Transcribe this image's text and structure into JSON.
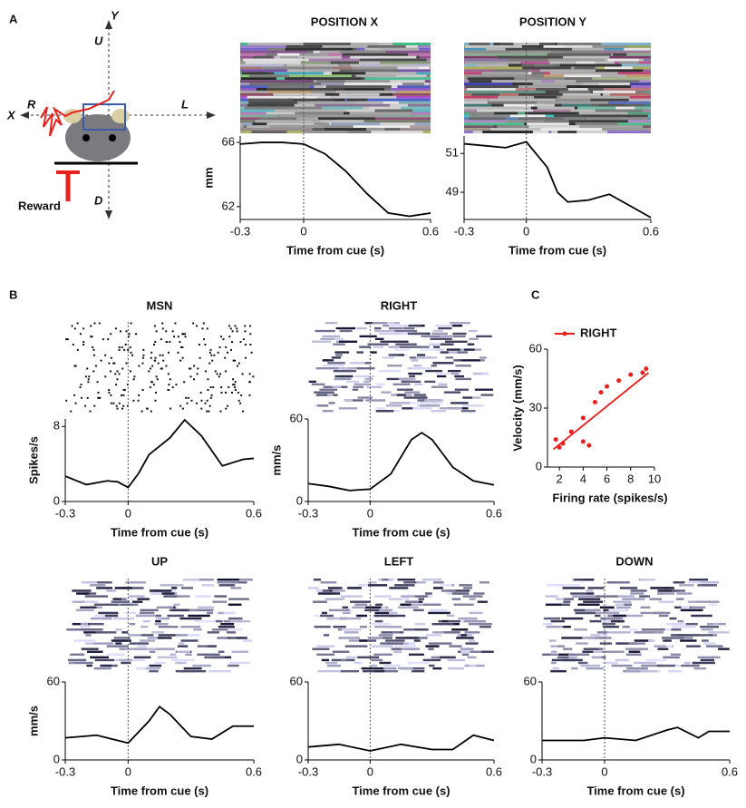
{
  "panels": [
    "A",
    "B",
    "C"
  ],
  "diagram": {
    "y_axis": "Y",
    "up": "U",
    "x_axis": "X",
    "right": "R",
    "left": "L",
    "down": "D",
    "reward": "Reward"
  },
  "chart_data": [
    {
      "type": "line",
      "title": "POSITION X",
      "xlabel": "Time from cue (s)",
      "ylabel": "mm",
      "raster": "bars",
      "x": [
        -0.3,
        -0.2,
        -0.1,
        0,
        0.1,
        0.2,
        0.3,
        0.4,
        0.5,
        0.6
      ],
      "values": [
        65.9,
        66.0,
        66.0,
        65.9,
        65.3,
        64.2,
        62.8,
        61.6,
        61.4,
        61.6
      ],
      "color": "#000000",
      "xlim": [
        -0.3,
        0.6
      ],
      "xticks": [
        -0.3,
        0,
        0.6
      ],
      "ylim": [
        61.2,
        66.4
      ],
      "yticks": [
        62,
        66
      ]
    },
    {
      "type": "line",
      "title": "POSITION Y",
      "xlabel": "Time from cue (s)",
      "raster": "bars",
      "x": [
        -0.3,
        -0.2,
        -0.1,
        0,
        0.1,
        0.15,
        0.2,
        0.3,
        0.4,
        0.5,
        0.6
      ],
      "values": [
        51.5,
        51.4,
        51.3,
        51.6,
        50.3,
        49.0,
        48.5,
        48.6,
        48.9,
        48.3,
        47.7
      ],
      "color": "#000000",
      "xlim": [
        -0.3,
        0.6
      ],
      "xticks": [
        -0.3,
        0,
        0.6
      ],
      "ylim": [
        47.6,
        51.9
      ],
      "yticks": [
        49,
        51
      ]
    },
    {
      "type": "line",
      "title": "MSN",
      "xlabel": "Time from cue (s)",
      "ylabel": "Spikes/s",
      "raster": "dots",
      "x": [
        -0.3,
        -0.2,
        -0.1,
        -0.05,
        0,
        0.05,
        0.1,
        0.2,
        0.27,
        0.35,
        0.45,
        0.55,
        0.6
      ],
      "values": [
        2.7,
        1.8,
        2.2,
        2.1,
        1.5,
        3.0,
        5.0,
        6.8,
        8.7,
        7.0,
        3.8,
        4.5,
        4.6
      ],
      "color": "#000000",
      "xlim": [
        -0.3,
        0.6
      ],
      "xticks": [
        -0.3,
        0,
        0.6
      ],
      "ylim": [
        0,
        8.8
      ],
      "yticks": [
        0,
        8
      ]
    },
    {
      "type": "line",
      "title": "RIGHT",
      "xlabel": "Time from cue (s)",
      "ylabel": "mm/s",
      "raster": "lines",
      "x": [
        -0.3,
        -0.2,
        -0.1,
        0,
        0.1,
        0.2,
        0.25,
        0.3,
        0.4,
        0.5,
        0.6
      ],
      "values": [
        13,
        11,
        8,
        9,
        20,
        45,
        50,
        45,
        25,
        15,
        12
      ],
      "color": "#000000",
      "xlim": [
        -0.3,
        0.6
      ],
      "xticks": [
        -0.3,
        0,
        0.6
      ],
      "ylim": [
        0,
        60
      ],
      "yticks": [
        0,
        60
      ]
    },
    {
      "type": "line",
      "title": "UP",
      "xlabel": "Time from cue (s)",
      "ylabel": "mm/s",
      "raster": "lines",
      "x": [
        -0.3,
        -0.15,
        0,
        0.1,
        0.15,
        0.2,
        0.3,
        0.4,
        0.5,
        0.6
      ],
      "values": [
        17,
        19,
        13,
        30,
        41,
        35,
        18,
        16,
        26,
        26
      ],
      "color": "#000000",
      "xlim": [
        -0.3,
        0.6
      ],
      "xticks": [
        -0.3,
        0,
        0.6
      ],
      "ylim": [
        0,
        60
      ],
      "yticks": [
        0,
        60
      ]
    },
    {
      "type": "line",
      "title": "LEFT",
      "xlabel": "Time from cue (s)",
      "raster": "lines",
      "x": [
        -0.3,
        -0.15,
        0,
        0.15,
        0.3,
        0.4,
        0.5,
        0.6
      ],
      "values": [
        10,
        12,
        7,
        12,
        8,
        8,
        19,
        15
      ],
      "color": "#000000",
      "xlim": [
        -0.3,
        0.6
      ],
      "xticks": [
        -0.3,
        0,
        0.6
      ],
      "ylim": [
        0,
        60
      ],
      "yticks": [
        0,
        60
      ]
    },
    {
      "type": "line",
      "title": "DOWN",
      "xlabel": "Time from cue (s)",
      "raster": "lines",
      "x": [
        -0.3,
        -0.1,
        0,
        0.15,
        0.3,
        0.35,
        0.45,
        0.5,
        0.6
      ],
      "values": [
        15,
        15,
        17,
        15,
        23,
        25,
        17,
        22,
        22
      ],
      "color": "#000000",
      "xlim": [
        -0.3,
        0.6
      ],
      "xticks": [
        -0.3,
        0,
        0.6
      ],
      "ylim": [
        0,
        60
      ],
      "yticks": [
        0,
        60
      ]
    },
    {
      "type": "scatter",
      "xlabel": "Firing rate (spikes/s)",
      "ylabel": "Velocity (mm/s)",
      "series": [
        {
          "name": "RIGHT",
          "color": "#e8211d",
          "x": [
            1.7,
            2,
            2.3,
            3,
            4,
            4,
            4.5,
            5,
            5.5,
            6,
            7,
            8,
            9,
            9.3
          ],
          "values": [
            14,
            10,
            12,
            18,
            25,
            13,
            11,
            33,
            38,
            41,
            44,
            47,
            48,
            50
          ]
        }
      ],
      "trend": {
        "x": [
          1.5,
          9.5
        ],
        "values": [
          9,
          48
        ]
      },
      "xlim": [
        1,
        10
      ],
      "xticks": [
        2,
        4,
        6,
        8,
        10
      ],
      "ylim": [
        0,
        60
      ],
      "yticks": [
        0,
        30,
        60
      ]
    }
  ]
}
